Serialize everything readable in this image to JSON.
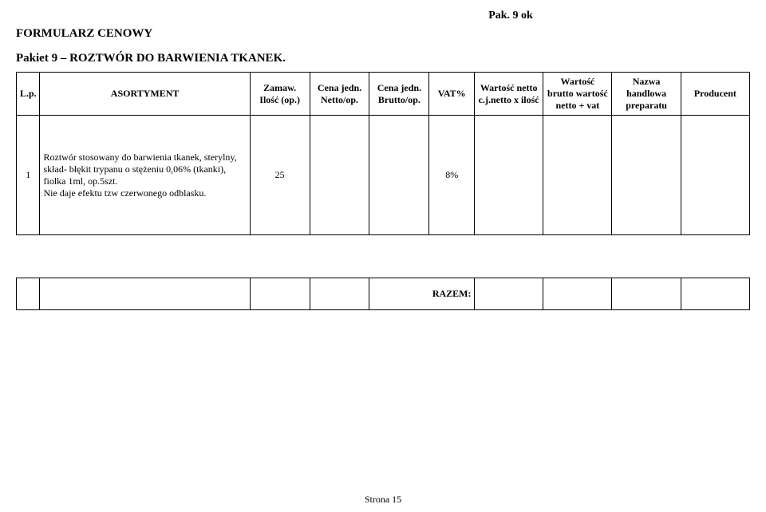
{
  "header": {
    "note": "Pak. 9 ok",
    "form_title": "FORMULARZ CENOWY",
    "package_title": "Pakiet 9 – ROZTWÓR DO BARWIENIA TKANEK."
  },
  "table": {
    "headers": {
      "lp": "L.p.",
      "asort": "ASORTYMENT",
      "zamaw": "Zamaw. Ilość (op.)",
      "netto": "Cena jedn. Netto/op.",
      "brutto": "Cena jedn. Brutto/op.",
      "vat": "VAT%",
      "wnetto": "Wartość netto c.j.netto x ilość",
      "wbrutto": "Wartość brutto wartość netto + vat",
      "nazwa": "Nazwa handlowa preparatu",
      "prod": "Producent"
    },
    "rows": [
      {
        "lp": "1",
        "asort": "Roztwór stosowany do barwienia tkanek, sterylny,\nskład- błękit trypanu o stężeniu 0,06% (tkanki),\nfiolka 1ml, op.5szt.\nNie daje efektu tzw czerwonego odblasku.",
        "zamaw": "25",
        "netto": "",
        "brutto": "",
        "vat": "8%",
        "wnetto": "",
        "wbrutto": "",
        "nazwa": "",
        "prod": ""
      }
    ],
    "razem_label": "RAZEM:"
  },
  "footer": {
    "page": "Strona 15"
  },
  "colors": {
    "text": "#000000",
    "background": "#ffffff",
    "border": "#000000"
  }
}
